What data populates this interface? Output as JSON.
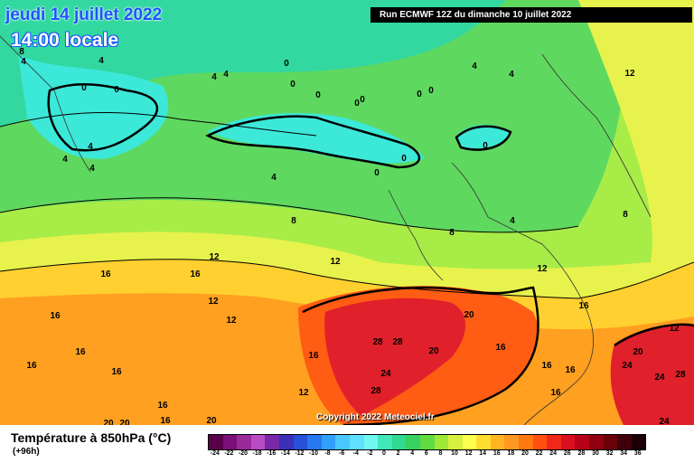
{
  "header": {
    "date_text": "jeudi 14 juillet 2022",
    "time_text": "14:00 locale",
    "run_text": "Run ECMWF 12Z du dimanche 10 juillet 2022",
    "copyright": "Copyright 2022 Meteociel.fr"
  },
  "legend": {
    "title": "Température à 850hPa (°C)",
    "subtitle": "(+96h)",
    "ticks": [
      "-24",
      "-22",
      "-20",
      "-18",
      "-16",
      "-14",
      "-12",
      "-10",
      "-8",
      "-6",
      "-4",
      "-2",
      "0",
      "2",
      "4",
      "6",
      "8",
      "10",
      "12",
      "14",
      "16",
      "18",
      "20",
      "22",
      "24",
      "26",
      "28",
      "30",
      "32",
      "34",
      "36"
    ],
    "colors": [
      "#5a0048",
      "#7a1078",
      "#9a2a9a",
      "#b94cc4",
      "#7828a8",
      "#3c30b8",
      "#2850d8",
      "#2878f0",
      "#30a0ff",
      "#48c8ff",
      "#60e0ff",
      "#70f8f0",
      "#40e8b8",
      "#30d890",
      "#38d060",
      "#60dc40",
      "#a0e838",
      "#d8f040",
      "#ffff50",
      "#ffdc30",
      "#ffb420",
      "#ff9820",
      "#ff7810",
      "#ff5010",
      "#f02818",
      "#d81020",
      "#b80018",
      "#900010",
      "#6a0008",
      "#40000a",
      "#1a0005"
    ]
  },
  "map": {
    "labels_0": [
      "0",
      "0",
      "0",
      "0",
      "0",
      "0",
      "0",
      "0",
      "0",
      "0",
      "0",
      "0"
    ],
    "labels_4": [
      "4",
      "4",
      "4",
      "4",
      "4",
      "4",
      "4",
      "4",
      "4",
      "4",
      "4"
    ],
    "labels_8": [
      "8",
      "8",
      "8",
      "8"
    ],
    "labels_12": [
      "12",
      "12",
      "12",
      "12",
      "12",
      "12",
      "12",
      "12"
    ],
    "labels_16": [
      "16",
      "16",
      "16",
      "16",
      "16",
      "16",
      "16",
      "16",
      "16",
      "16",
      "16",
      "16",
      "16",
      "16"
    ],
    "labels_20": [
      "20",
      "20",
      "20",
      "20",
      "20",
      "20"
    ],
    "labels_24": [
      "24",
      "24",
      "24",
      "24"
    ],
    "labels_28": [
      "28",
      "28",
      "28",
      "28"
    ]
  }
}
